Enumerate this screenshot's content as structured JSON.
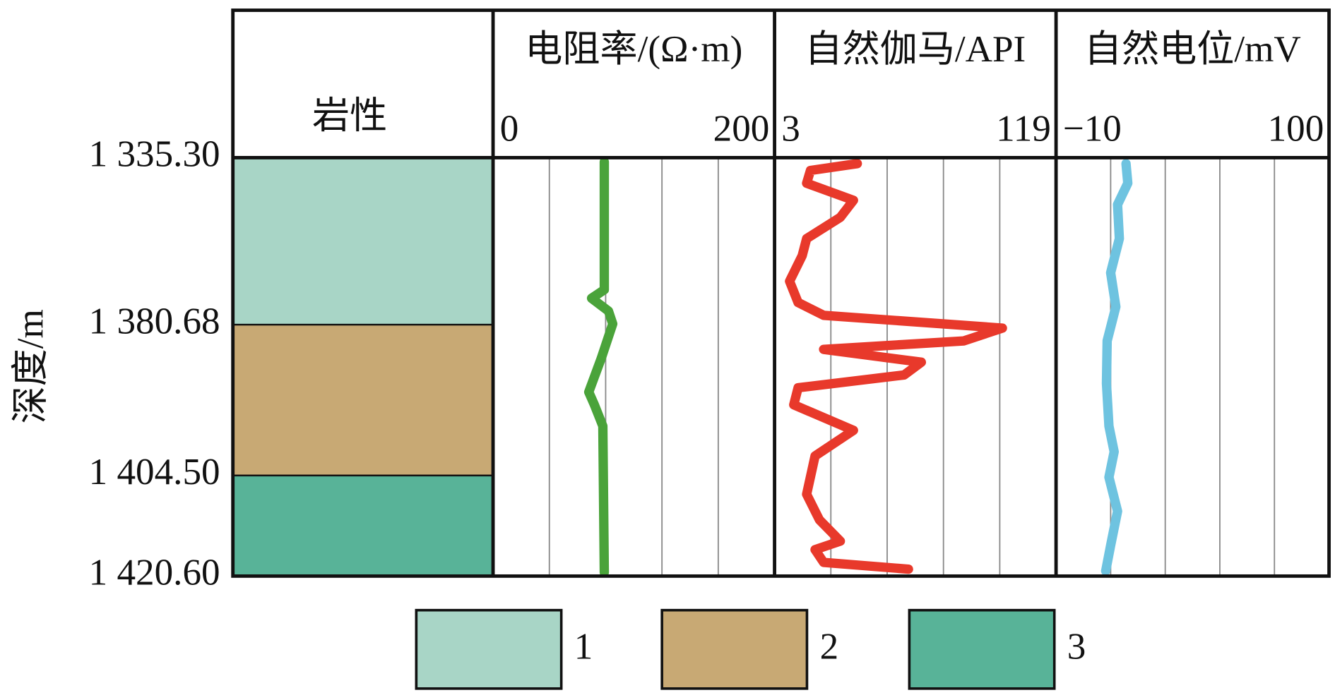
{
  "chart_data": {
    "type": "well_log",
    "ylabel": "深度/m",
    "yticks": [
      {
        "value": 1335.3,
        "label": "1 335.30"
      },
      {
        "value": 1380.68,
        "label": "1 380.68"
      },
      {
        "value": 1404.5,
        "label": "1 404.50"
      },
      {
        "value": 1420.6,
        "label": "1 420.60"
      }
    ],
    "lithology": {
      "title": "岩性",
      "classes": [
        {
          "name": "1",
          "color": "#a8d5c6"
        },
        {
          "name": "2",
          "color": "#c8a974"
        },
        {
          "name": "3",
          "color": "#58b398"
        }
      ],
      "layers": [
        {
          "top": 1335.3,
          "bottom": 1380.68,
          "class": "1"
        },
        {
          "top": 1380.68,
          "bottom": 1404.5,
          "class": "2"
        },
        {
          "top": 1404.5,
          "bottom": 1420.6,
          "class": "3"
        }
      ]
    },
    "tracks": [
      {
        "name": "电阻率/(Ω·m)",
        "color": "#4aa33a",
        "xlim": [
          0,
          200
        ],
        "xticks": [
          0,
          200
        ],
        "grid": true,
        "depth": [
          1336.46,
          1371.18,
          1373.5,
          1376.97,
          1380.44,
          1385.93,
          1391.31,
          1393.33,
          1396.7,
          1420.0
        ],
        "values": [
          79,
          79,
          70,
          82,
          85,
          77,
          68,
          72,
          78,
          79
        ]
      },
      {
        "name": "自然伽马/API",
        "color": "#e8392b",
        "xlim": [
          3,
          119
        ],
        "xticks": [
          3,
          119
        ],
        "grid": true,
        "depth": [
          1336.92,
          1338.77,
          1342.25,
          1346.88,
          1351.51,
          1357.29,
          1361.92,
          1368.87,
          1374.66,
          1378.13,
          1381.22,
          1383.24,
          1384.58,
          1386.6,
          1388.62,
          1390.64,
          1393.33,
          1397.37,
          1401.41,
          1407.5,
          1411.59,
          1415.0,
          1416.37,
          1418.41,
          1419.5
        ],
        "values": [
          37.1,
          17.8,
          16.2,
          35.5,
          30.1,
          16.2,
          14.4,
          9.2,
          12.7,
          23.2,
          96.9,
          81.0,
          23.2,
          63.5,
          56.4,
          12.7,
          10.9,
          35.5,
          19.7,
          16.2,
          21.5,
          30.1,
          19.7,
          23.2,
          58.2
        ]
      },
      {
        "name": "自然电位/mV",
        "color": "#6ec3e0",
        "xlim": [
          -10,
          100
        ],
        "xticks": [
          {
            "value": -10,
            "label": "−10"
          },
          100
        ],
        "grid": true,
        "depth": [
          1336.92,
          1342.25,
          1348.03,
          1357.29,
          1366.55,
          1375.82,
          1383.24,
          1389.97,
          1396.7,
          1400.74,
          1404.77,
          1410.22,
          1415.68,
          1419.78
        ],
        "values": [
          18.2,
          18.9,
          14.8,
          15.5,
          12.0,
          14.1,
          10.6,
          10.3,
          11.3,
          13.4,
          11.3,
          14.8,
          12.0,
          10.0
        ]
      }
    ]
  }
}
